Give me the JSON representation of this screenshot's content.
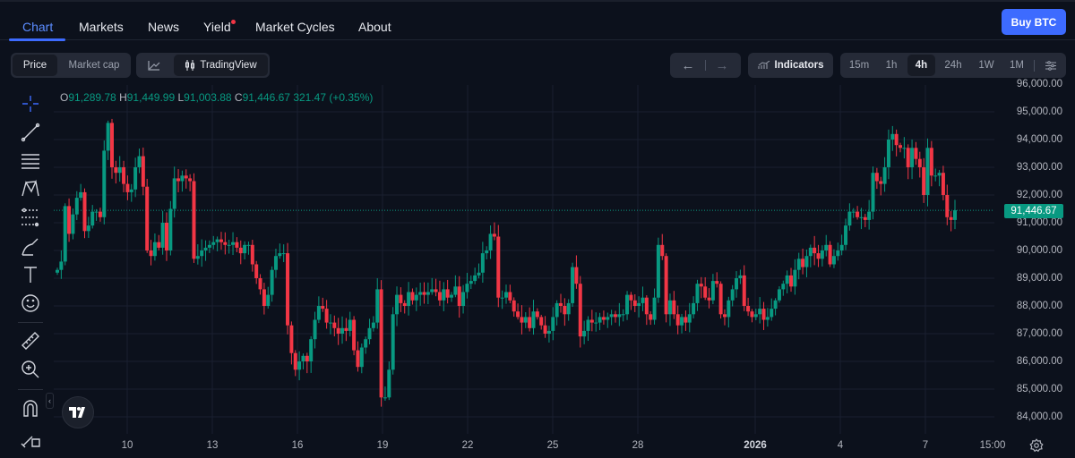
{
  "nav": {
    "tabs": [
      {
        "label": "Chart",
        "active": true
      },
      {
        "label": "Markets"
      },
      {
        "label": "News"
      },
      {
        "label": "Yield",
        "badge_dot": true
      },
      {
        "label": "Market Cycles"
      },
      {
        "label": "About"
      }
    ],
    "buy_label": "Buy BTC"
  },
  "toolbar": {
    "price": "Price",
    "market_cap": "Market cap",
    "tradingview": "TradingView",
    "indicators": "Indicators",
    "timeframes": [
      "15m",
      "1h",
      "4h",
      "24h",
      "1W",
      "1M"
    ],
    "active_timeframe": "4h"
  },
  "colors": {
    "up": "#089981",
    "down": "#f23645",
    "accent": "#3d6bff"
  },
  "legend": {
    "o_label": "O",
    "o": "91,289.78",
    "h_label": "H",
    "h": "91,449.99",
    "l_label": "L",
    "l": "91,003.88",
    "c_label": "C",
    "c": "91,446.67",
    "change": "321.47 (+0.35%)"
  },
  "chart_data": {
    "type": "candlestick",
    "interval": "4h",
    "ylim": [
      83600,
      96000
    ],
    "y_ticks": [
      "96,000.00",
      "95,000.00",
      "94,000.00",
      "93,000.00",
      "92,000.00",
      "91,000.00",
      "90,000.00",
      "89,000.00",
      "88,000.00",
      "87,000.00",
      "86,000.00",
      "85,000.00",
      "84,000.00"
    ],
    "y_tick_values": [
      96000,
      95000,
      94000,
      93000,
      92000,
      91000,
      90000,
      89000,
      88000,
      87000,
      86000,
      85000,
      84000
    ],
    "x_ticks": [
      "10",
      "13",
      "16",
      "19",
      "22",
      "25",
      "28",
      "2026",
      "4",
      "7",
      "15:00"
    ],
    "current_price": "91,446.67",
    "current_price_value": 91446.67,
    "closes": [
      89300,
      89600,
      91600,
      90600,
      91300,
      91900,
      92100,
      90700,
      90900,
      91400,
      91400,
      91200,
      93600,
      94600,
      93000,
      92800,
      93000,
      92400,
      92100,
      92200,
      93000,
      93400,
      92300,
      90000,
      89800,
      90300,
      90100,
      91000,
      90000,
      91500,
      92600,
      92500,
      92700,
      92600,
      92500,
      89700,
      89800,
      90000,
      90100,
      90200,
      90300,
      90400,
      90300,
      90200,
      90200,
      90300,
      90100,
      89900,
      90200,
      90200,
      89500,
      89000,
      88600,
      88000,
      88400,
      89300,
      89800,
      89900,
      89900,
      87300,
      86300,
      85700,
      86000,
      86200,
      86000,
      86800,
      87500,
      88000,
      87900,
      87400,
      87400,
      87200,
      87000,
      87200,
      87100,
      87500,
      86400,
      85800,
      86500,
      86800,
      87200,
      87400,
      88600,
      84700,
      84700,
      85700,
      87700,
      88400,
      88100,
      88000,
      88500,
      88200,
      88400,
      88500,
      88400,
      88500,
      88600,
      88500,
      88200,
      88600,
      88300,
      88400,
      88700,
      88000,
      88500,
      88800,
      88900,
      89100,
      89200,
      89900,
      90000,
      90600,
      90500,
      88300,
      88300,
      88500,
      88200,
      87800,
      87600,
      87400,
      87600,
      87200,
      87800,
      87600,
      87300,
      87000,
      87100,
      87600,
      88100,
      88000,
      87700,
      88100,
      89400,
      88800,
      86900,
      87100,
      87500,
      87400,
      87400,
      87600,
      87500,
      87600,
      87700,
      87600,
      87700,
      87700,
      88400,
      88200,
      88000,
      88100,
      88300,
      87700,
      87500,
      88300,
      90200,
      89800,
      87700,
      88200,
      87700,
      87300,
      87600,
      87400,
      87700,
      88100,
      88800,
      88700,
      88300,
      88200,
      88900,
      88800,
      87700,
      87600,
      88200,
      88600,
      89000,
      89100,
      88000,
      87800,
      87600,
      87700,
      87900,
      87500,
      87600,
      87900,
      88200,
      88600,
      88800,
      89100,
      88700,
      89300,
      89700,
      89400,
      89800,
      90100,
      89900,
      89700,
      90000,
      90200,
      89500,
      89800,
      90000,
      90200,
      90900,
      91400,
      91400,
      91200,
      91200,
      91100,
      91400,
      92800,
      92500,
      92400,
      93000,
      94000,
      94200,
      93800,
      93700,
      93700,
      93000,
      93700,
      93300,
      93000,
      92000,
      93700,
      92700,
      92700,
      92800,
      92000,
      91200,
      91100,
      91450
    ],
    "first_open": 89200
  }
}
